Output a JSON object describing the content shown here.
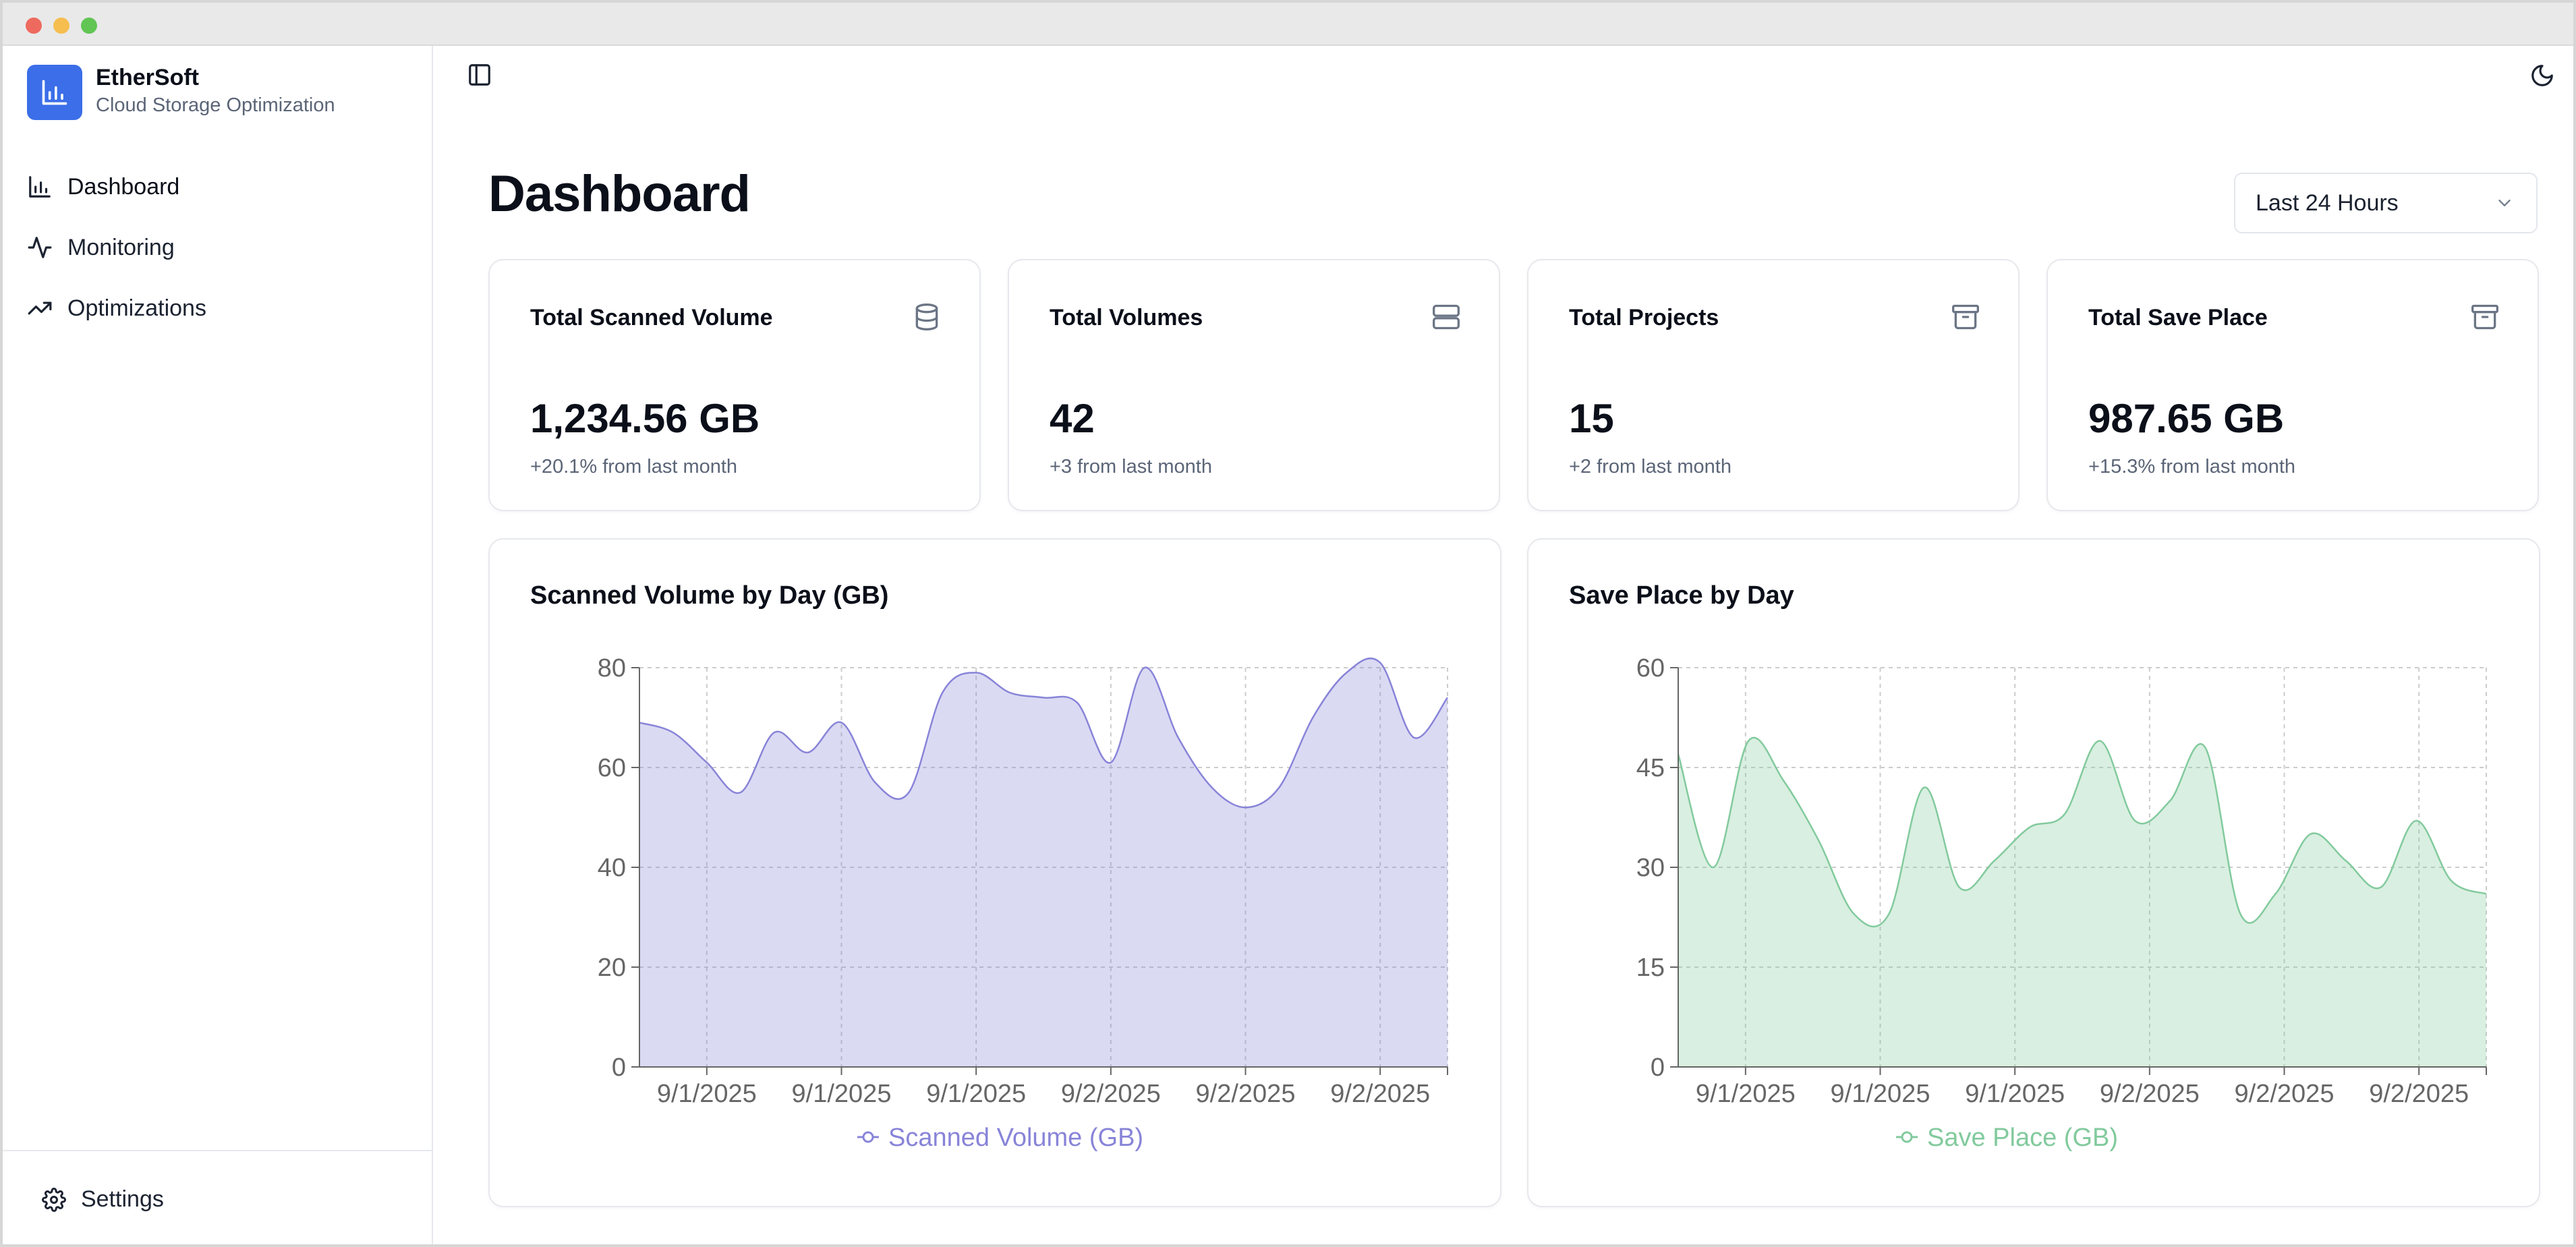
{
  "app": {
    "name": "EtherSoft",
    "subtitle": "Cloud Storage Optimization"
  },
  "sidebar": {
    "items": [
      {
        "label": "Dashboard",
        "icon": "bar-chart-icon",
        "active": true
      },
      {
        "label": "Monitoring",
        "icon": "activity-icon",
        "active": false
      },
      {
        "label": "Optimizations",
        "icon": "trending-up-icon",
        "active": false
      }
    ],
    "footer": {
      "label": "Settings",
      "icon": "gear-icon"
    }
  },
  "header": {
    "toggle_icon": "sidebar-toggle-icon",
    "theme_icon": "moon-icon"
  },
  "page": {
    "title": "Dashboard"
  },
  "range": {
    "selected": "Last 24 Hours"
  },
  "colors": {
    "accent": "#3b6ee8",
    "purple_series": "#8884d8",
    "green_series": "#82ca9d"
  },
  "stats": [
    {
      "title": "Total Scanned Volume",
      "value": "1,234.56 GB",
      "change": "+20.1% from last month",
      "icon": "database-icon"
    },
    {
      "title": "Total Volumes",
      "value": "42",
      "change": "+3 from last month",
      "icon": "server-icon"
    },
    {
      "title": "Total Projects",
      "value": "15",
      "change": "+2 from last month",
      "icon": "archive-icon"
    },
    {
      "title": "Total Save Place",
      "value": "987.65 GB",
      "change": "+15.3% from last month",
      "icon": "archive-icon"
    }
  ],
  "chart_data": [
    {
      "type": "area",
      "title": "Scanned Volume by Day (GB)",
      "x_tick_labels": [
        "9/1/2025",
        "9/1/2025",
        "9/1/2025",
        "9/2/2025",
        "9/2/2025",
        "9/2/2025"
      ],
      "ylim": [
        0,
        80
      ],
      "yticks": [
        0,
        20,
        40,
        60,
        80
      ],
      "grid": true,
      "legend": "bottom",
      "series": [
        {
          "name": "Scanned Volume (GB)",
          "color": "#8884d8",
          "values": [
            69,
            67,
            61,
            55,
            67,
            63,
            69,
            57,
            55,
            75,
            79,
            75,
            74,
            73,
            61,
            80,
            66,
            56,
            52,
            56,
            70,
            79,
            81,
            66,
            74
          ]
        }
      ]
    },
    {
      "type": "area",
      "title": "Save Place by Day",
      "x_tick_labels": [
        "9/1/2025",
        "9/1/2025",
        "9/1/2025",
        "9/2/2025",
        "9/2/2025",
        "9/2/2025"
      ],
      "ylim": [
        0,
        60
      ],
      "yticks": [
        0,
        15,
        30,
        45,
        60
      ],
      "grid": true,
      "legend": "bottom",
      "series": [
        {
          "name": "Save Place (GB)",
          "color": "#82ca9d",
          "values": [
            47,
            30,
            49,
            43,
            34,
            23,
            23,
            42,
            27,
            31,
            36,
            38,
            49,
            37,
            40,
            48,
            23,
            26,
            35,
            31,
            27,
            37,
            28,
            26
          ]
        }
      ]
    }
  ]
}
